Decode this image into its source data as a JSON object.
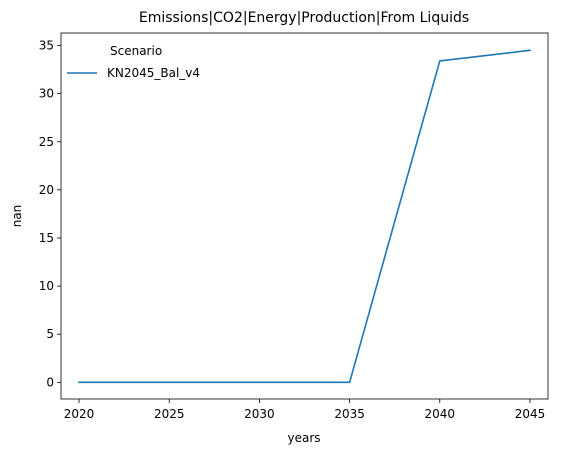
{
  "chart_data": {
    "type": "line",
    "title": "Emissions|CO2|Energy|Production|From Liquids",
    "xlabel": "years",
    "ylabel": "nan",
    "xlim": [
      2019,
      2046
    ],
    "ylim": [
      -1.73,
      36.3
    ],
    "xticks": [
      2020,
      2025,
      2030,
      2035,
      2040,
      2045
    ],
    "yticks": [
      0,
      5,
      10,
      15,
      20,
      25,
      30,
      35
    ],
    "grid": false,
    "legend": {
      "title": "Scenario",
      "placement": "upper-left"
    },
    "series": [
      {
        "name": "KN2045_Bal_v4",
        "color": "#1f77b4",
        "x": [
          2020,
          2025,
          2030,
          2035,
          2040,
          2045
        ],
        "y": [
          0,
          0,
          0,
          0,
          33.4,
          34.5
        ]
      }
    ]
  }
}
